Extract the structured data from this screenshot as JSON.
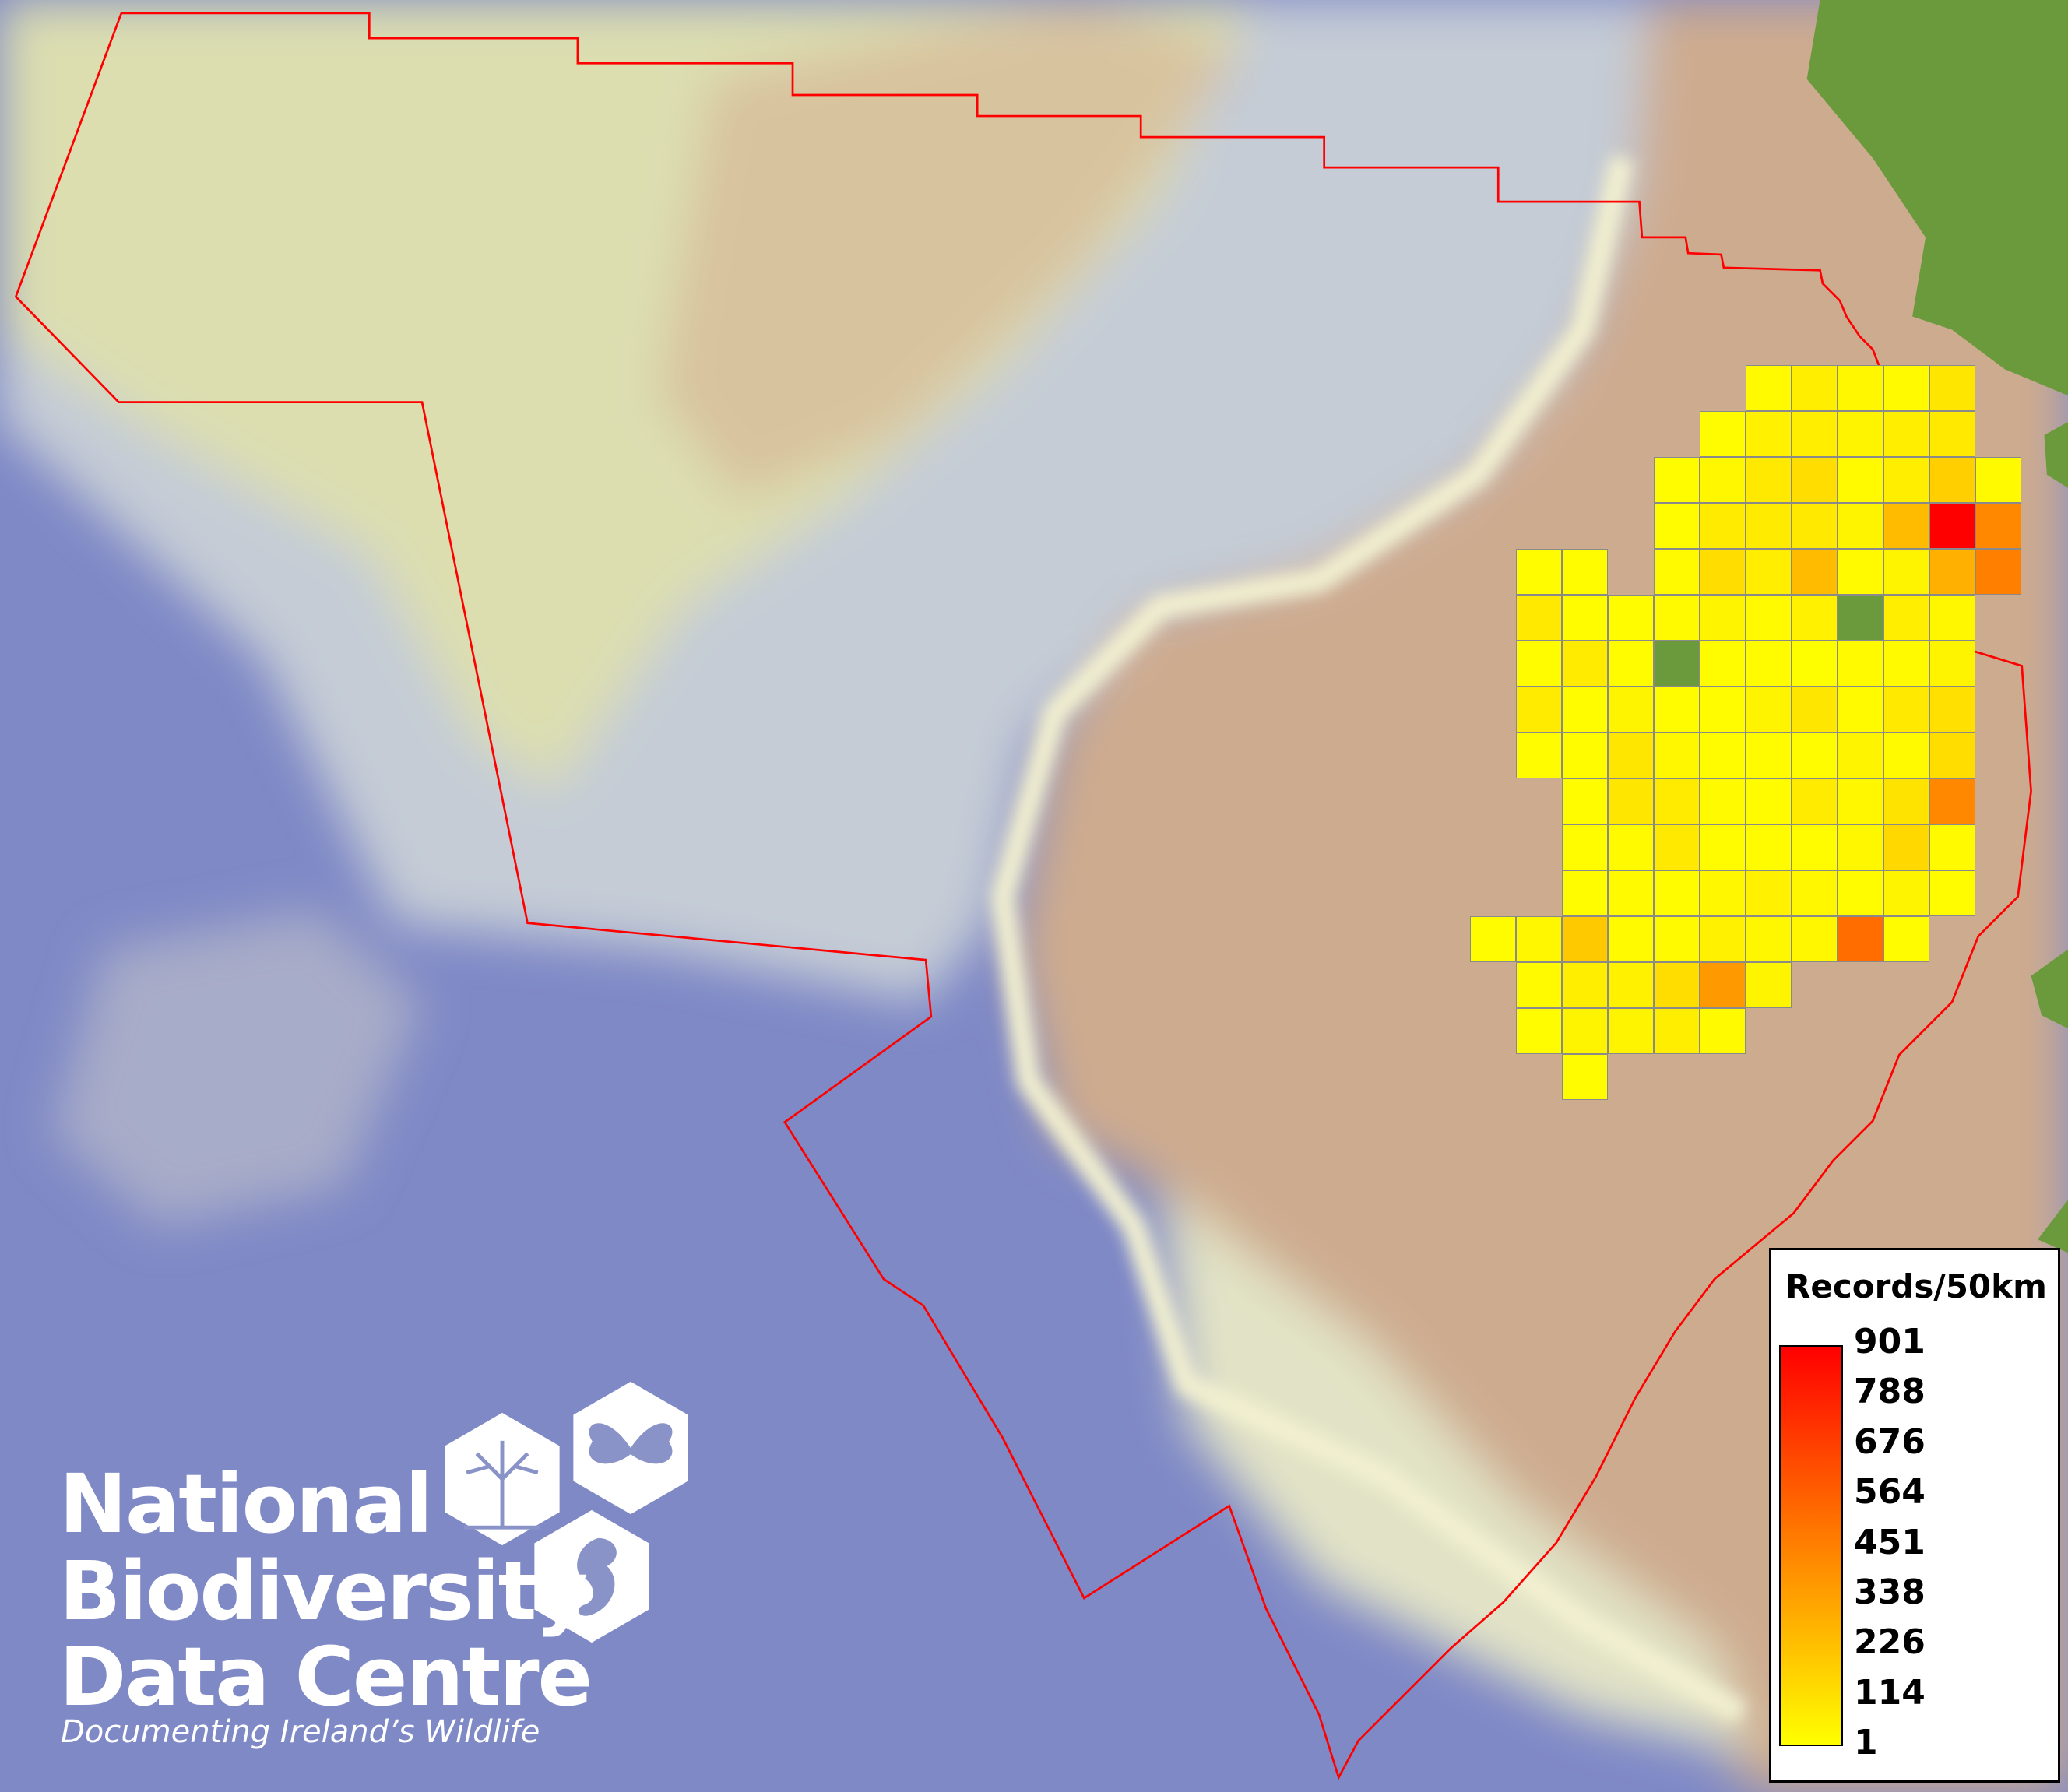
{
  "map": {
    "colors": {
      "deep_ocean": "#7f89c6",
      "shelf": "#dfe0b2",
      "slope": "#c9d0d4",
      "land": "#cdab8f",
      "land_green": "#6a9a3c",
      "boundary": "#ff0000",
      "cell_border": "#8a8a8a",
      "scale_low": "#ffff00",
      "scale_high": "#ff0000"
    },
    "grid": {
      "rows": [
        {
          "start": 6,
          "values": [
            20,
            60,
            30,
            20,
            90
          ]
        },
        {
          "start": 5,
          "values": [
            10,
            50,
            60,
            40,
            60,
            80
          ]
        },
        {
          "start": 4,
          "values": [
            10,
            30,
            80,
            120,
            20,
            60,
            170,
            20
          ]
        },
        {
          "start": 4,
          "values": [
            10,
            70,
            70,
            80,
            40,
            240,
            901,
            420
          ]
        },
        {
          "start": 1,
          "values": [
            10,
            10,
            -1,
            20,
            120,
            60,
            240,
            20,
            40,
            280,
            450
          ]
        },
        {
          "start": 1,
          "values": [
            80,
            10,
            10,
            20,
            40,
            20,
            50,
            null,
            60,
            30
          ]
        },
        {
          "start": 1,
          "values": [
            10,
            70,
            10,
            null,
            10,
            10,
            5,
            20,
            20,
            40
          ]
        },
        {
          "start": 1,
          "values": [
            70,
            10,
            40,
            10,
            10,
            40,
            90,
            20,
            80,
            110
          ]
        },
        {
          "start": 1,
          "values": [
            10,
            10,
            90,
            30,
            10,
            10,
            10,
            40,
            20,
            120
          ]
        },
        {
          "start": 2,
          "values": [
            10,
            90,
            70,
            20,
            10,
            70,
            30,
            100,
            420
          ]
        },
        {
          "start": 2,
          "values": [
            10,
            20,
            80,
            10,
            10,
            10,
            30,
            140,
            20
          ]
        },
        {
          "start": 2,
          "values": [
            10,
            20,
            10,
            30,
            50,
            30,
            10,
            40,
            10
          ]
        },
        {
          "start": 0,
          "values": [
            10,
            30,
            190,
            20,
            20,
            50,
            30,
            30,
            520,
            10
          ]
        },
        {
          "start": 1,
          "values": [
            20,
            60,
            50,
            120,
            360,
            40
          ]
        },
        {
          "start": 1,
          "values": [
            10,
            40,
            40,
            60,
            20
          ]
        },
        {
          "start": 2,
          "values": [
            10
          ]
        }
      ]
    }
  },
  "legend": {
    "title": "Records/50km",
    "min": 1,
    "max": 901,
    "ticks": [
      "901",
      "788",
      "676",
      "564",
      "451",
      "338",
      "226",
      "114",
      "1"
    ]
  },
  "logo": {
    "line1": "National",
    "line2": "Biodiversity",
    "line3": "Data Centre",
    "tagline": "Documenting Ireland’s Wildlife",
    "icons": [
      "tree-icon",
      "butterfly-icon",
      "seahorse-icon"
    ]
  }
}
